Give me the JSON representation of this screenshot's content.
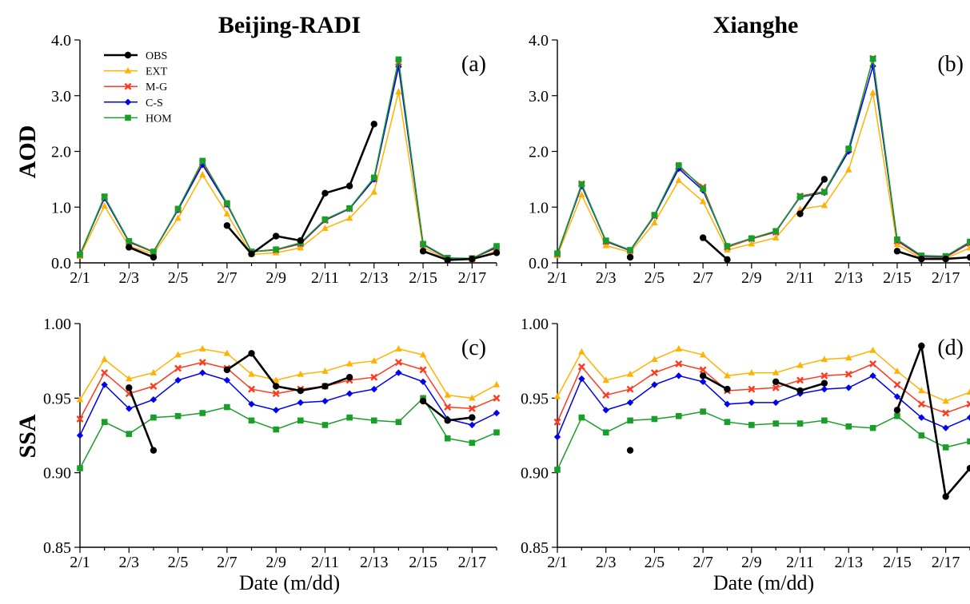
{
  "column_titles": [
    "Beijing-RADI",
    "Xianghe"
  ],
  "row_labels": [
    "AOD",
    "SSA"
  ],
  "xlabel": "Date (m/dd)",
  "x_tick_labels": [
    "2/1",
    "2/3",
    "2/5",
    "2/7",
    "2/9",
    "2/11",
    "2/13",
    "2/15",
    "2/17"
  ],
  "legend": {
    "entries": [
      {
        "label": "OBS",
        "color": "#000000",
        "marker": "circle"
      },
      {
        "label": "EXT",
        "color": "#ffb300",
        "marker": "triangle"
      },
      {
        "label": "M-G",
        "color": "#ff3b1f",
        "marker": "cross"
      },
      {
        "label": "C-S",
        "color": "#0000ee",
        "marker": "diamond"
      },
      {
        "label": "HOM",
        "color": "#1a9e2a",
        "marker": "square"
      }
    ],
    "placement": "top-left of panel (a)"
  },
  "chart_data": [
    {
      "panel": "(a)",
      "type": "line",
      "ylabel": "AOD",
      "ylim": [
        0,
        4.0
      ],
      "yticks": [
        "0.0",
        "1.0",
        "2.0",
        "3.0",
        "4.0"
      ],
      "x": [
        "2/1",
        "2/2",
        "2/3",
        "2/4",
        "2/5",
        "2/6",
        "2/7",
        "2/8",
        "2/9",
        "2/10",
        "2/11",
        "2/12",
        "2/13",
        "2/14",
        "2/15",
        "2/16",
        "2/17",
        "2/18"
      ],
      "xlim": [
        "2/1",
        "2/18"
      ],
      "series": [
        {
          "name": "OBS",
          "values": [
            null,
            null,
            0.28,
            0.1,
            null,
            null,
            0.67,
            0.16,
            0.48,
            0.4,
            1.25,
            1.38,
            2.49,
            null,
            0.21,
            0.05,
            0.07,
            0.18
          ]
        },
        {
          "name": "EXT",
          "values": [
            0.12,
            1.02,
            0.3,
            0.16,
            0.8,
            1.58,
            0.88,
            0.15,
            0.18,
            0.27,
            0.62,
            0.8,
            1.27,
            3.07,
            0.28,
            0.06,
            0.06,
            0.22
          ]
        },
        {
          "name": "M-G",
          "values": [
            0.14,
            1.17,
            0.37,
            0.19,
            0.95,
            1.8,
            1.05,
            0.2,
            0.23,
            0.34,
            0.76,
            0.97,
            1.5,
            3.6,
            0.33,
            0.08,
            0.08,
            0.27
          ]
        },
        {
          "name": "C-S",
          "values": [
            0.15,
            1.16,
            0.38,
            0.2,
            0.95,
            1.76,
            1.05,
            0.2,
            0.24,
            0.35,
            0.77,
            0.97,
            1.5,
            3.52,
            0.33,
            0.08,
            0.08,
            0.28
          ]
        },
        {
          "name": "HOM",
          "values": [
            0.15,
            1.19,
            0.39,
            0.2,
            0.97,
            1.83,
            1.07,
            0.2,
            0.24,
            0.36,
            0.78,
            0.98,
            1.53,
            3.65,
            0.34,
            0.09,
            0.08,
            0.3
          ]
        }
      ]
    },
    {
      "panel": "(b)",
      "type": "line",
      "ylabel": "AOD",
      "ylim": [
        0,
        4.0
      ],
      "yticks": [
        "0.0",
        "1.0",
        "2.0",
        "3.0",
        "4.0"
      ],
      "x": [
        "2/1",
        "2/2",
        "2/3",
        "2/4",
        "2/5",
        "2/6",
        "2/7",
        "2/8",
        "2/9",
        "2/10",
        "2/11",
        "2/12",
        "2/13",
        "2/14",
        "2/15",
        "2/16",
        "2/17",
        "2/18"
      ],
      "xlim": [
        "2/1",
        "2/18"
      ],
      "series": [
        {
          "name": "OBS",
          "values": [
            null,
            null,
            null,
            0.1,
            null,
            null,
            0.45,
            0.06,
            null,
            null,
            0.88,
            1.5,
            null,
            null,
            0.21,
            0.07,
            0.07,
            0.1
          ]
        },
        {
          "name": "EXT",
          "values": [
            0.13,
            1.22,
            0.31,
            0.19,
            0.72,
            1.48,
            1.1,
            0.23,
            0.34,
            0.45,
            0.96,
            1.03,
            1.67,
            3.05,
            0.33,
            0.08,
            0.08,
            0.27
          ]
        },
        {
          "name": "M-G",
          "values": [
            0.16,
            1.42,
            0.38,
            0.22,
            0.84,
            1.72,
            1.36,
            0.28,
            0.43,
            0.55,
            1.2,
            1.28,
            2.03,
            3.67,
            0.39,
            0.11,
            0.1,
            0.35
          ]
        },
        {
          "name": "C-S",
          "values": [
            0.16,
            1.38,
            0.39,
            0.22,
            0.85,
            1.69,
            1.3,
            0.3,
            0.44,
            0.56,
            1.18,
            1.26,
            2.0,
            3.53,
            0.41,
            0.12,
            0.11,
            0.37
          ]
        },
        {
          "name": "HOM",
          "values": [
            0.17,
            1.41,
            0.4,
            0.23,
            0.86,
            1.75,
            1.33,
            0.3,
            0.44,
            0.57,
            1.19,
            1.27,
            2.05,
            3.66,
            0.42,
            0.13,
            0.12,
            0.38
          ]
        }
      ]
    },
    {
      "panel": "(c)",
      "type": "line",
      "ylabel": "SSA",
      "ylim": [
        0.85,
        1.0
      ],
      "yticks": [
        "0.85",
        "0.90",
        "0.95",
        "1.00"
      ],
      "x": [
        "2/1",
        "2/2",
        "2/3",
        "2/4",
        "2/5",
        "2/6",
        "2/7",
        "2/8",
        "2/9",
        "2/10",
        "2/11",
        "2/12",
        "2/13",
        "2/14",
        "2/15",
        "2/16",
        "2/17",
        "2/18"
      ],
      "xlim": [
        "2/1",
        "2/18"
      ],
      "series": [
        {
          "name": "OBS",
          "values": [
            null,
            null,
            0.957,
            0.915,
            null,
            null,
            0.969,
            0.98,
            0.958,
            0.955,
            0.958,
            0.964,
            null,
            null,
            0.948,
            0.935,
            0.937,
            null
          ]
        },
        {
          "name": "EXT",
          "values": [
            0.949,
            0.976,
            0.963,
            0.967,
            0.979,
            0.983,
            0.98,
            0.966,
            0.962,
            0.966,
            0.968,
            0.973,
            0.975,
            0.983,
            0.979,
            0.952,
            0.95,
            0.959
          ]
        },
        {
          "name": "M-G",
          "values": [
            0.936,
            0.967,
            0.953,
            0.958,
            0.97,
            0.974,
            0.97,
            0.956,
            0.953,
            0.956,
            0.958,
            0.962,
            0.964,
            0.974,
            0.969,
            0.944,
            0.943,
            0.95
          ]
        },
        {
          "name": "C-S",
          "values": [
            0.925,
            0.959,
            0.943,
            0.949,
            0.962,
            0.967,
            0.962,
            0.946,
            0.942,
            0.947,
            0.948,
            0.953,
            0.956,
            0.967,
            0.961,
            0.936,
            0.932,
            0.94
          ]
        },
        {
          "name": "HOM",
          "values": [
            0.903,
            0.934,
            0.926,
            0.937,
            0.938,
            0.94,
            0.944,
            0.935,
            0.929,
            0.935,
            0.932,
            0.937,
            0.935,
            0.934,
            0.95,
            0.923,
            0.92,
            0.927
          ]
        }
      ]
    },
    {
      "panel": "(d)",
      "type": "line",
      "ylabel": "SSA",
      "ylim": [
        0.85,
        1.0
      ],
      "yticks": [
        "0.85",
        "0.90",
        "0.95",
        "1.00"
      ],
      "x": [
        "2/1",
        "2/2",
        "2/3",
        "2/4",
        "2/5",
        "2/6",
        "2/7",
        "2/8",
        "2/9",
        "2/10",
        "2/11",
        "2/12",
        "2/13",
        "2/14",
        "2/15",
        "2/16",
        "2/17",
        "2/18"
      ],
      "xlim": [
        "2/1",
        "2/18"
      ],
      "series": [
        {
          "name": "OBS",
          "values": [
            null,
            null,
            null,
            0.915,
            null,
            null,
            0.965,
            0.956,
            null,
            0.961,
            0.955,
            0.96,
            null,
            null,
            0.942,
            0.985,
            0.884,
            0.903
          ]
        },
        {
          "name": "EXT",
          "values": [
            0.951,
            0.981,
            0.962,
            0.966,
            0.976,
            0.983,
            0.979,
            0.965,
            0.967,
            0.967,
            0.972,
            0.976,
            0.977,
            0.982,
            0.968,
            0.955,
            0.948,
            0.954
          ]
        },
        {
          "name": "M-G",
          "values": [
            0.934,
            0.971,
            0.952,
            0.956,
            0.967,
            0.973,
            0.969,
            0.955,
            0.956,
            0.957,
            0.962,
            0.965,
            0.966,
            0.973,
            0.959,
            0.946,
            0.94,
            0.946
          ]
        },
        {
          "name": "C-S",
          "values": [
            0.924,
            0.963,
            0.942,
            0.947,
            0.959,
            0.965,
            0.961,
            0.946,
            0.947,
            0.947,
            0.953,
            0.956,
            0.957,
            0.965,
            0.951,
            0.937,
            0.93,
            0.937
          ]
        },
        {
          "name": "HOM",
          "values": [
            0.902,
            0.937,
            0.927,
            0.935,
            0.936,
            0.938,
            0.941,
            0.934,
            0.932,
            0.933,
            0.933,
            0.935,
            0.931,
            0.93,
            0.938,
            0.925,
            0.917,
            0.921
          ]
        }
      ]
    }
  ]
}
